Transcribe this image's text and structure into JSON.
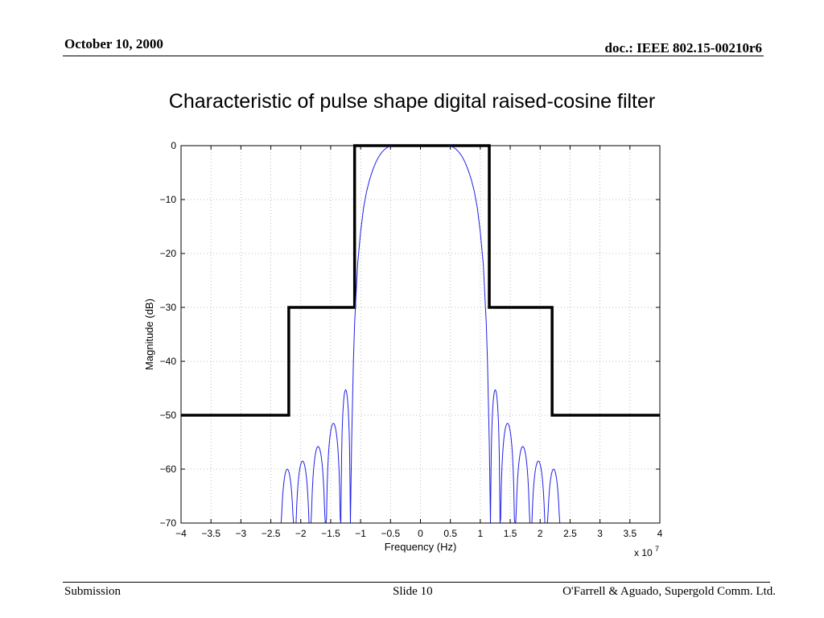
{
  "header": {
    "date": "October 10, 2000",
    "doc_id": "doc.: IEEE 802.15-00210r6"
  },
  "slide": {
    "title": "Characteristic of pulse shape digital raised-cosine filter"
  },
  "footer": {
    "left": "Submission",
    "center": "Slide 10",
    "right": "O'Farrell & Aguado, Supergold Comm. Ltd."
  },
  "chart_data": {
    "type": "line",
    "title": "",
    "xlabel": "Frequency (Hz)",
    "ylabel": "Magnitude (dB)",
    "x_multiplier": "x 10",
    "x_multiplier_exponent": "7",
    "xlim": [
      -4,
      4
    ],
    "ylim": [
      -70,
      0
    ],
    "x_ticks": [
      -4,
      -3.5,
      -3,
      -2.5,
      -2,
      -1.5,
      -1,
      -0.5,
      0,
      0.5,
      1,
      1.5,
      2,
      2.5,
      3,
      3.5,
      4
    ],
    "x_tick_labels": [
      "−4",
      "−3.5",
      "−3",
      "−2.5",
      "−2",
      "−1.5",
      "−1",
      "−0.5",
      "0",
      "0.5",
      "1",
      "1.5",
      "2",
      "2.5",
      "3",
      "3.5",
      "4"
    ],
    "y_ticks": [
      0,
      -10,
      -20,
      -30,
      -40,
      -50,
      -60,
      -70
    ],
    "y_tick_labels": [
      "0",
      "−10",
      "−20",
      "−30",
      "−40",
      "−50",
      "−60",
      "−70"
    ],
    "grid": true,
    "series": [
      {
        "color": "#000000",
        "style": "thick-step",
        "x": [
          -4,
          -2.2,
          -2.2,
          -1.1,
          -1.1,
          1.15,
          1.15,
          2.2,
          2.2,
          4
        ],
        "y": [
          -50,
          -50,
          -30,
          -30,
          0,
          0,
          -30,
          -30,
          -50,
          -50
        ]
      },
      {
        "color": "#1f1fe6",
        "style": "thin",
        "main_lobe": {
          "x": [
            -1.17,
            -1.15,
            -1.12,
            -1.1,
            -1.05,
            -1.0,
            -0.95,
            -0.9,
            -0.85,
            -0.8,
            -0.75,
            -0.7,
            -0.65,
            -0.6,
            -0.55,
            -0.5,
            -0.45,
            -0.4,
            -0.3,
            -0.2,
            -0.1,
            0,
            0.1,
            0.2,
            0.3,
            0.4,
            0.45,
            0.5,
            0.55,
            0.6,
            0.65,
            0.7,
            0.75,
            0.8,
            0.85,
            0.9,
            0.95,
            1.0,
            1.05,
            1.1,
            1.12,
            1.15,
            1.17
          ],
          "y": [
            -70,
            -55,
            -40,
            -33,
            -22,
            -16,
            -11.5,
            -8.5,
            -6.3,
            -4.6,
            -3.2,
            -2.1,
            -1.3,
            -0.7,
            -0.3,
            -0.1,
            0,
            0,
            0,
            0,
            0,
            0,
            0,
            0,
            0,
            0,
            0,
            -0.1,
            -0.3,
            -0.7,
            -1.3,
            -2.1,
            -3.2,
            -4.6,
            -6.3,
            -8.5,
            -11.5,
            -16,
            -22,
            -33,
            -40,
            -55,
            -70
          ]
        },
        "sidelobes": [
          {
            "x_start": -2.35,
            "x_end": -2.1,
            "peak": -60
          },
          {
            "x_start": -2.1,
            "x_end": -1.84,
            "peak": -58.5
          },
          {
            "x_start": -1.84,
            "x_end": -1.58,
            "peak": -55.8
          },
          {
            "x_start": -1.58,
            "x_end": -1.33,
            "peak": -51.5
          },
          {
            "x_start": -1.33,
            "x_end": -1.17,
            "peak": -45.3
          },
          {
            "x_start": 1.17,
            "x_end": 1.33,
            "peak": -45.3
          },
          {
            "x_start": 1.33,
            "x_end": 1.58,
            "peak": -51.5
          },
          {
            "x_start": 1.58,
            "x_end": 1.84,
            "peak": -55.8
          },
          {
            "x_start": 1.84,
            "x_end": 2.1,
            "peak": -58.5
          },
          {
            "x_start": 2.1,
            "x_end": 2.35,
            "peak": -60
          }
        ]
      }
    ]
  }
}
